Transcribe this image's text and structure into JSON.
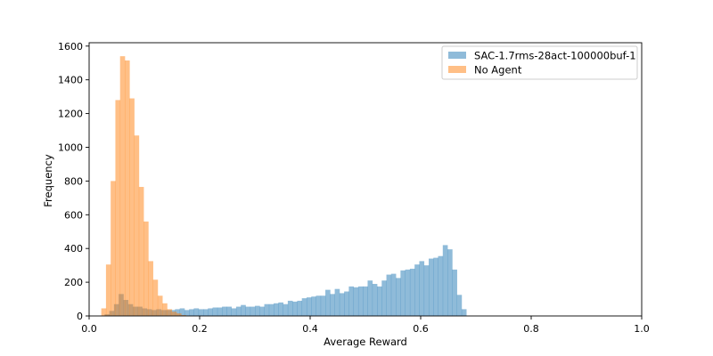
{
  "chart_data": {
    "type": "bar",
    "subtype": "overlapping-histogram",
    "title": "",
    "xlabel": "Average Reward",
    "ylabel": "Frequency",
    "xlim": [
      0.0,
      1.0
    ],
    "ylim": [
      0,
      1620
    ],
    "xticks": [
      0.0,
      0.2,
      0.4,
      0.6,
      0.8,
      1.0
    ],
    "xtick_labels": [
      "0.0",
      "0.2",
      "0.4",
      "0.6",
      "0.8",
      "1.0"
    ],
    "yticks": [
      0,
      200,
      400,
      600,
      800,
      1000,
      1200,
      1400,
      1600
    ],
    "ytick_labels": [
      "0",
      "200",
      "400",
      "600",
      "800",
      "1000",
      "1200",
      "1400",
      "1600"
    ],
    "grid": false,
    "legend": "upper right",
    "series": [
      {
        "name": "SAC-1.7rms-28act-100000buf-1",
        "color": "#1f77b4",
        "alpha": 0.5,
        "bin_start": 0.028,
        "bin_width": 0.0085,
        "values": [
          10,
          30,
          70,
          130,
          95,
          70,
          55,
          55,
          45,
          40,
          35,
          40,
          35,
          35,
          35,
          40,
          45,
          35,
          40,
          45,
          40,
          40,
          45,
          50,
          50,
          55,
          55,
          45,
          55,
          65,
          55,
          55,
          60,
          55,
          70,
          70,
          75,
          80,
          70,
          90,
          85,
          90,
          105,
          110,
          115,
          120,
          120,
          155,
          130,
          160,
          135,
          145,
          175,
          170,
          175,
          175,
          210,
          190,
          175,
          210,
          245,
          250,
          225,
          270,
          275,
          280,
          305,
          325,
          300,
          340,
          345,
          355,
          420,
          395,
          275,
          125,
          40
        ]
      },
      {
        "name": "No Agent",
        "color": "#ff7f0e",
        "alpha": 0.5,
        "bin_start": 0.022,
        "bin_width": 0.0085,
        "values": [
          45,
          305,
          800,
          1280,
          1540,
          1515,
          1290,
          1070,
          765,
          560,
          325,
          215,
          120,
          75,
          40,
          25,
          15,
          5
        ]
      }
    ]
  }
}
